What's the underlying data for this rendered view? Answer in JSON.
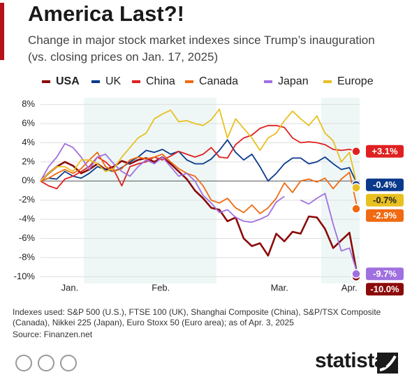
{
  "chart_data": {
    "type": "line",
    "title": "America Last?!",
    "subtitle": "Change in major stock market indexes since Trump’s inauguration (vs. closing prices on Jan. 17, 2025)",
    "note": "Indexes used: S&P 500 (U.S.), FTSE 100 (UK), Shanghai Composite (China), S&P/TSX Composite (Canada), Nikkei 225 (Japan), Euro Stoxx 50 (Euro area); as of Apr. 3, 2025",
    "source": "Source: Finanzen.net",
    "logo": "statista",
    "xlim": [
      0,
      39
    ],
    "xticks": [
      {
        "value": 3.6,
        "label": "Jan."
      },
      {
        "value": 14.8,
        "label": "Feb."
      },
      {
        "value": 29.4,
        "label": "Mar."
      },
      {
        "value": 38,
        "label": "Apr."
      }
    ],
    "ylim": [
      -10.7,
      8.7
    ],
    "yticks": [
      {
        "value": 8,
        "label": "8%"
      },
      {
        "value": 6,
        "label": "6%"
      },
      {
        "value": 4,
        "label": "4%"
      },
      {
        "value": 2,
        "label": "2%"
      },
      {
        "value": 0,
        "label": "0%"
      },
      {
        "value": -2,
        "label": "-2%"
      },
      {
        "value": -4,
        "label": "-4%"
      },
      {
        "value": -6,
        "label": "-6%"
      },
      {
        "value": -8,
        "label": "-8%"
      },
      {
        "value": -10,
        "label": "-10%"
      }
    ],
    "grid": true,
    "series": [
      {
        "name": "USA",
        "color": "#8b0a0a",
        "end_label": "-10.0%",
        "values": [
          0,
          0.8,
          1.5,
          2,
          1.6,
          0.8,
          1.2,
          1.8,
          1.2,
          1.5,
          2.1,
          1.8,
          2.2,
          2.4,
          2,
          2.5,
          1.8,
          1,
          0.2,
          -1,
          -1.8,
          -2.8,
          -3,
          -4.2,
          -3.8,
          -6,
          -6.8,
          -6.5,
          -7.8,
          -5.5,
          -6.3,
          -5.3,
          -5.5,
          -3.7,
          -3.8,
          -5,
          -7,
          -6.2,
          -5.4,
          -10
        ]
      },
      {
        "name": "UK",
        "color": "#0b3a8c",
        "end_label": "-0.4%",
        "values": [
          0,
          0.3,
          0.2,
          1,
          0.5,
          0.3,
          0.8,
          1.5,
          1.2,
          1,
          1.4,
          2,
          2.5,
          3.2,
          3,
          3.3,
          2.8,
          3.1,
          2.2,
          1.8,
          1.8,
          2.3,
          3.2,
          4.3,
          3,
          2.2,
          2.8,
          1.5,
          0,
          0.8,
          1.8,
          2.4,
          2.4,
          1.8,
          2,
          2.5,
          1.8,
          1.2,
          1.4,
          -0.4
        ]
      },
      {
        "name": "China",
        "color": "#e02020",
        "end_label": "+3.1%",
        "values": [
          0,
          -0.5,
          -0.8,
          0.2,
          0.5,
          1,
          1.5,
          2.5,
          2,
          1.2,
          -0.5,
          1.5,
          1.8,
          2,
          2.5,
          2.2,
          2.6,
          3.1,
          2.8,
          2.5,
          2.8,
          3.5,
          2.5,
          2.4,
          3.8,
          4.5,
          4.8,
          5.5,
          5.8,
          5.8,
          5.6,
          4.5,
          4,
          4.1,
          4,
          3.8,
          3.3,
          3.2,
          3.3,
          3.1
        ]
      },
      {
        "name": "Canada",
        "color": "#f06a12",
        "end_label": "-2.9%",
        "values": [
          0,
          0.3,
          0.8,
          1.2,
          0.8,
          1.3,
          2.2,
          3,
          1.5,
          1,
          1.3,
          2.2,
          2.5,
          2.3,
          2.5,
          2.8,
          2,
          1.3,
          0.8,
          0.5,
          -0.5,
          -2,
          -2.3,
          -1.8,
          -2.8,
          -3.3,
          -2.5,
          -3.4,
          -2.8,
          -1.8,
          -0.2,
          -1.2,
          0,
          0.2,
          -0.1,
          0.3,
          -0.8,
          0.2,
          0.9,
          -2.9
        ]
      },
      {
        "name": "Japan",
        "color": "#a070e0",
        "end_label": "-9.7%",
        "values": [
          0,
          1.5,
          2.5,
          3.9,
          3.5,
          2.5,
          1.2,
          2.5,
          2.8,
          1.8,
          1,
          0.5,
          1.5,
          2.2,
          1.8,
          2.5,
          1.5,
          0.5,
          0.8,
          0,
          -1.5,
          -2.3,
          -3.3,
          -3,
          -3.8,
          -4.2,
          -4.3,
          -4,
          -3.6,
          -2.2,
          -1.6,
          null,
          -2,
          -2.4,
          -1.8,
          -1.3,
          -4.5,
          -7.3,
          -7,
          -9.7
        ]
      },
      {
        "name": "Europe",
        "color": "#e8c020",
        "end_label": "-0.7%",
        "values": [
          0,
          0.8,
          1.5,
          1.5,
          1,
          2.2,
          2.2,
          1.8,
          1,
          1.3,
          2.5,
          3.5,
          4.5,
          5,
          6.5,
          7,
          7.4,
          6.2,
          6.3,
          6,
          5.8,
          6.4,
          7.5,
          4.5,
          6.5,
          5.5,
          4.5,
          3.2,
          4.5,
          5,
          6.3,
          7.3,
          6.5,
          5.8,
          6.8,
          5,
          4.2,
          2,
          3,
          -0.7
        ]
      }
    ]
  }
}
